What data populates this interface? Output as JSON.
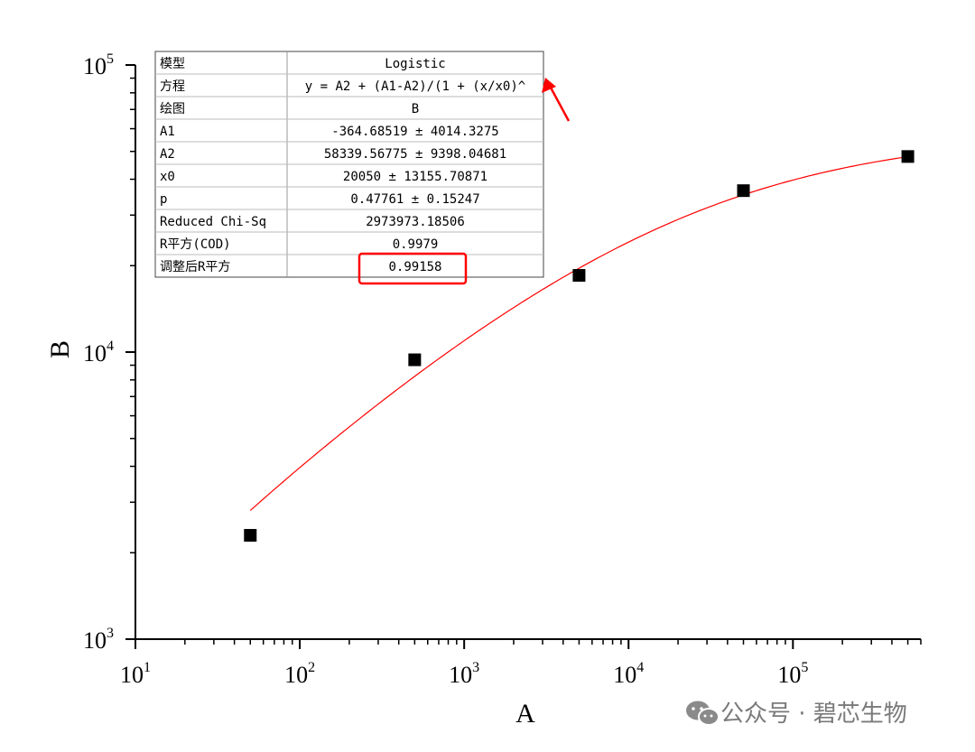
{
  "chart_data": {
    "type": "scatter",
    "xlabel": "A",
    "ylabel": "B",
    "x_scale": "log",
    "y_scale": "log",
    "xlim": [
      10,
      600000
    ],
    "ylim": [
      1000,
      100000
    ],
    "x_ticks": [
      {
        "base": "10",
        "exp": "1"
      },
      {
        "base": "10",
        "exp": "2"
      },
      {
        "base": "10",
        "exp": "3"
      },
      {
        "base": "10",
        "exp": "4"
      },
      {
        "base": "10",
        "exp": "5"
      }
    ],
    "y_ticks": [
      {
        "base": "10",
        "exp": "3"
      },
      {
        "base": "10",
        "exp": "4"
      },
      {
        "base": "10",
        "exp": "5"
      }
    ],
    "points": [
      {
        "x": 50,
        "y": 2300
      },
      {
        "x": 500,
        "y": 9400
      },
      {
        "x": 5000,
        "y": 18500
      },
      {
        "x": 50000,
        "y": 36500
      },
      {
        "x": 500000,
        "y": 48000
      }
    ],
    "marker_color": "#000000",
    "fit": {
      "color": "#ff0000",
      "x_range": [
        50,
        500000
      ],
      "A1": -364.68519,
      "A2": 58339.56775,
      "x0": 20050,
      "p": 0.47761
    },
    "stats_table": [
      [
        "模型",
        "Logistic"
      ],
      [
        "方程",
        "y = A2 + (A1-A2)/(1 + (x/x0)^"
      ],
      [
        "绘图",
        "B"
      ],
      [
        "A1",
        "-364.68519 ± 4014.3275"
      ],
      [
        "A2",
        "58339.56775 ± 9398.04681"
      ],
      [
        "x0",
        "20050 ± 13155.70871"
      ],
      [
        "p",
        "0.47761 ± 0.15247"
      ],
      [
        "Reduced Chi-Sq",
        "2973973.18506"
      ],
      [
        "R平方(COD)",
        "0.9979"
      ],
      [
        "调整后R平方",
        "0.99158"
      ]
    ],
    "highlight_color": "#ff0000"
  },
  "watermark": {
    "icon": "wechat-icon",
    "text": "公众号 · 碧芯生物"
  }
}
